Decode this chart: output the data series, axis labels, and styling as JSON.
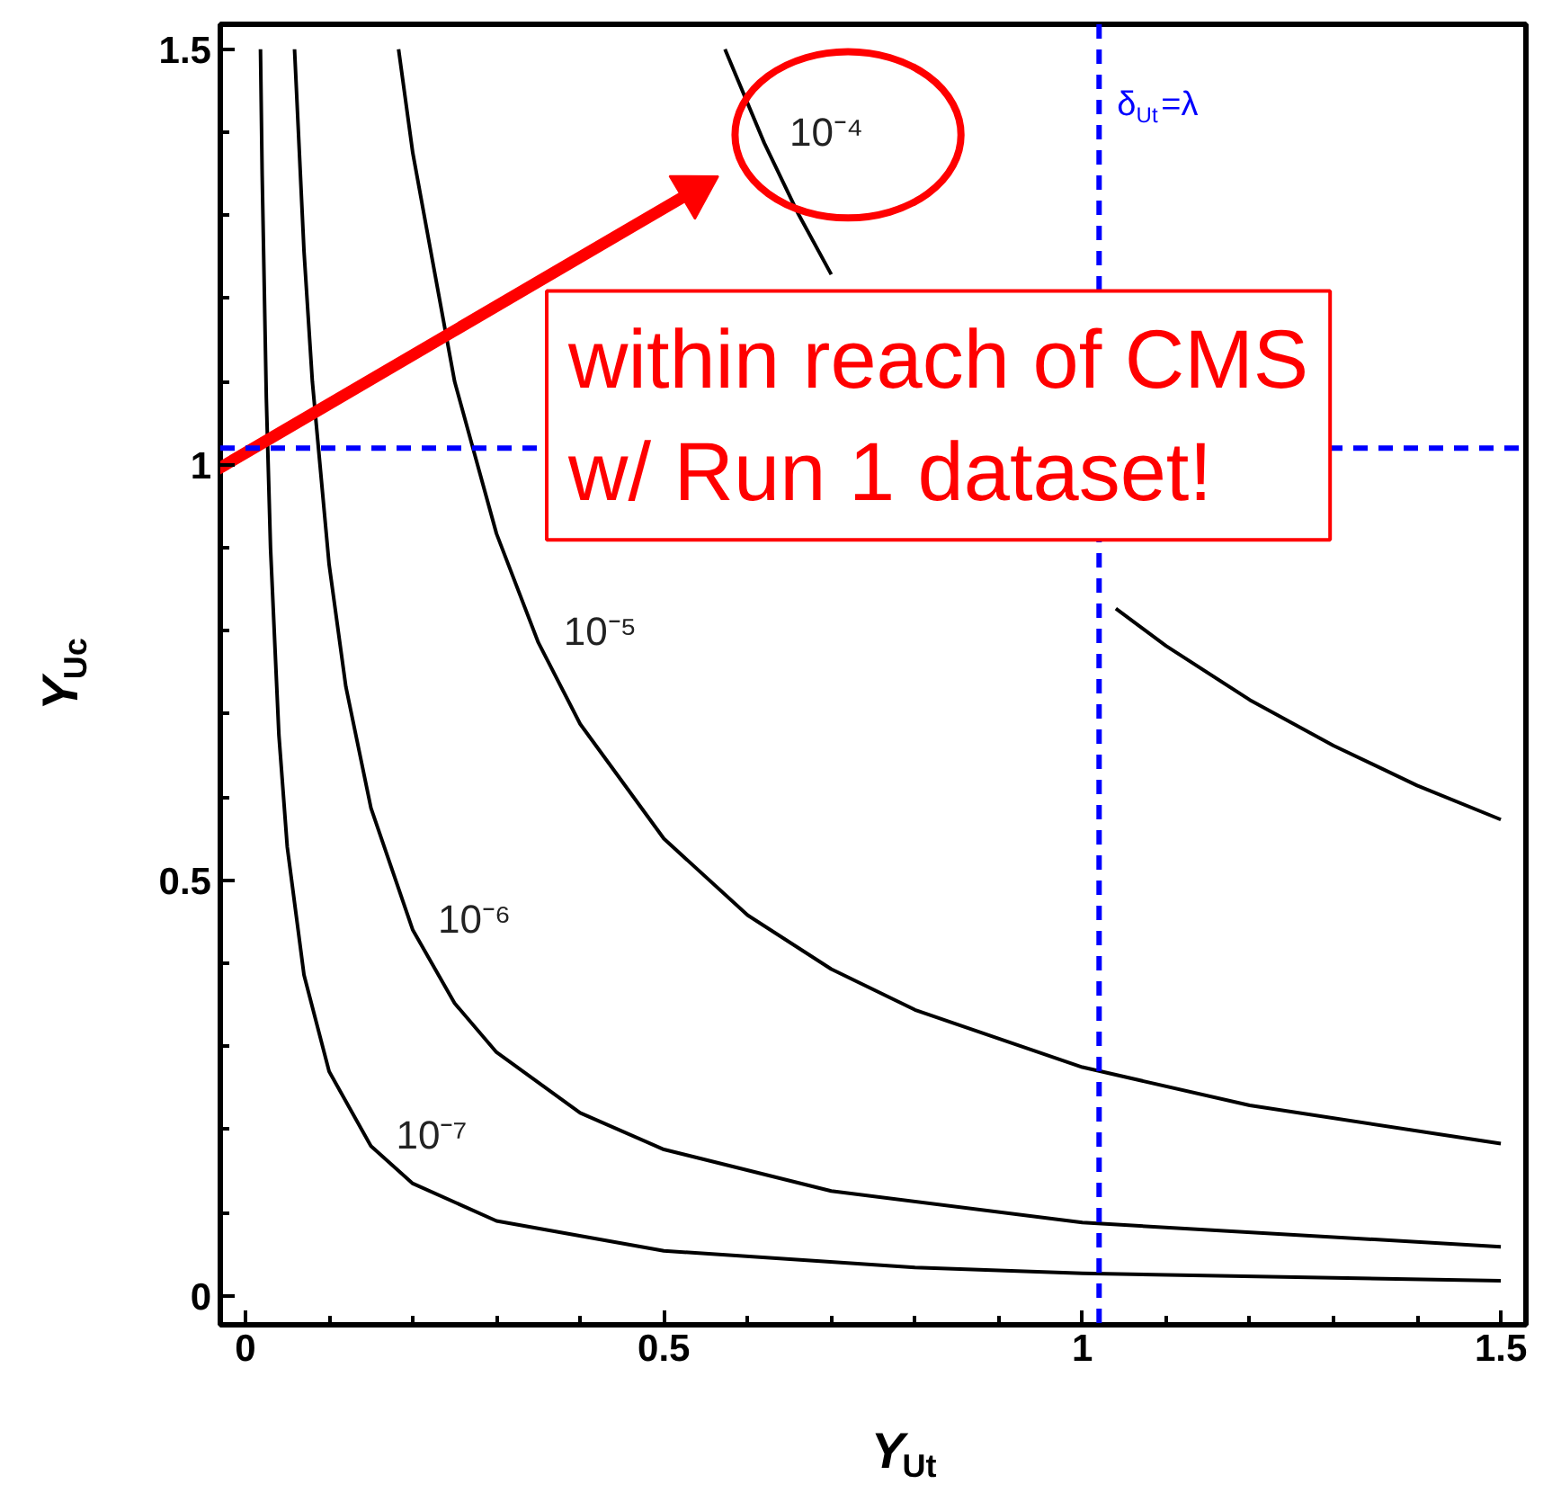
{
  "chart_data": {
    "type": "line",
    "xlabel": "Y$_{Ut}$",
    "ylabel": "Y$_{Uc}$",
    "xlim": [
      -0.03,
      1.53
    ],
    "ylim": [
      -0.035,
      1.53
    ],
    "xticks": [
      0,
      0.5,
      1,
      1.5
    ],
    "yticks": [
      0,
      0.5,
      1,
      1.5
    ],
    "grid": false,
    "marker": "none",
    "line_style": "solid",
    "series": [
      {
        "name": "10⁻⁴",
        "color": "#000000",
        "x": [
          0.573,
          0.62,
          0.66,
          0.7,
          0.85,
          1.04,
          1.1,
          1.2,
          1.3,
          1.4,
          1.5
        ],
        "values": [
          1.5,
          1.387,
          1.303,
          1.229,
          null,
          0.827,
          0.782,
          0.717,
          0.662,
          0.614,
          0.573
        ]
      },
      {
        "name": "10⁻⁵",
        "color": "#000000",
        "x": [
          0.183,
          0.2,
          0.25,
          0.3,
          0.35,
          0.4,
          0.5,
          0.6,
          0.7,
          0.8,
          1.0,
          1.2,
          1.5
        ],
        "values": [
          1.5,
          1.375,
          1.1,
          0.917,
          0.786,
          0.688,
          0.55,
          0.458,
          0.393,
          0.344,
          0.275,
          0.229,
          0.183
        ]
      },
      {
        "name": "10⁻⁶",
        "color": "#000000",
        "x": [
          0.0587,
          0.07,
          0.08,
          0.1,
          0.12,
          0.15,
          0.2,
          0.25,
          0.3,
          0.4,
          0.5,
          0.7,
          1.0,
          1.5
        ],
        "values": [
          1.5,
          1.257,
          1.1,
          0.88,
          0.733,
          0.587,
          0.44,
          0.352,
          0.293,
          0.22,
          0.176,
          0.126,
          0.088,
          0.059
        ]
      },
      {
        "name": "10⁻⁷",
        "color": "#000000",
        "x": [
          0.018,
          0.02,
          0.025,
          0.03,
          0.04,
          0.05,
          0.07,
          0.1,
          0.15,
          0.2,
          0.3,
          0.5,
          0.8,
          1.0,
          1.5
        ],
        "values": [
          1.5,
          1.35,
          1.08,
          0.9,
          0.675,
          0.54,
          0.386,
          0.27,
          0.18,
          0.135,
          0.09,
          0.054,
          0.034,
          0.027,
          0.018
        ]
      }
    ],
    "ref_lines": [
      {
        "axis": "x",
        "value": 1.02,
        "label": "δ$_{Ut}$=λ",
        "color": "#0000ff",
        "line_style": "dashed"
      },
      {
        "axis": "y",
        "value": 1.02,
        "color": "#0000ff",
        "line_style": "dashed"
      }
    ],
    "annotations": [
      "within reach of CMS w/ Run 1 dataset!"
    ]
  }
}
